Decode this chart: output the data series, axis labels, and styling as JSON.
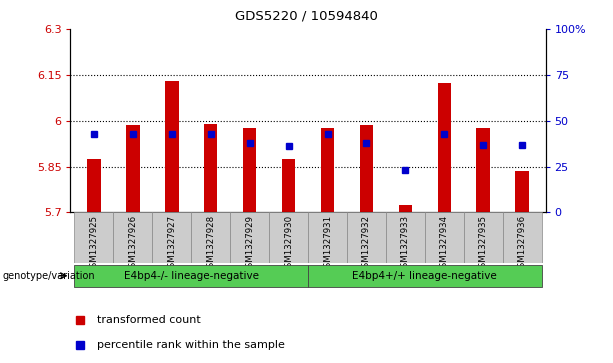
{
  "title": "GDS5220 / 10594840",
  "samples": [
    "GSM1327925",
    "GSM1327926",
    "GSM1327927",
    "GSM1327928",
    "GSM1327929",
    "GSM1327930",
    "GSM1327931",
    "GSM1327932",
    "GSM1327933",
    "GSM1327934",
    "GSM1327935",
    "GSM1327936"
  ],
  "red_values": [
    5.875,
    5.985,
    6.13,
    5.99,
    5.975,
    5.875,
    5.975,
    5.985,
    5.725,
    6.125,
    5.975,
    5.835
  ],
  "blue_pct": [
    43,
    43,
    43,
    43,
    38,
    36,
    43,
    38,
    23,
    43,
    37,
    37
  ],
  "ylim_left": [
    5.7,
    6.3
  ],
  "ylim_right": [
    0,
    100
  ],
  "yticks_left": [
    5.7,
    5.85,
    6.0,
    6.15,
    6.3
  ],
  "yticks_right": [
    0,
    25,
    50,
    75,
    100
  ],
  "ytick_labels_left": [
    "5.7",
    "5.85",
    "6",
    "6.15",
    "6.3"
  ],
  "ytick_labels_right": [
    "0",
    "25",
    "50",
    "75",
    "100%"
  ],
  "hlines": [
    5.85,
    6.0,
    6.15
  ],
  "group1_label": "E4bp4-/- lineage-negative",
  "group2_label": "E4bp4+/+ lineage-negative",
  "group1_indices": [
    0,
    1,
    2,
    3,
    4,
    5
  ],
  "group2_indices": [
    6,
    7,
    8,
    9,
    10,
    11
  ],
  "genotype_label": "genotype/variation",
  "legend_red": "transformed count",
  "legend_blue": "percentile rank within the sample",
  "bar_bottom": 5.7,
  "red_color": "#cc0000",
  "blue_color": "#0000cc",
  "group_bg_color": "#55cc55",
  "sample_bg_color": "#cccccc",
  "bar_width": 0.35
}
